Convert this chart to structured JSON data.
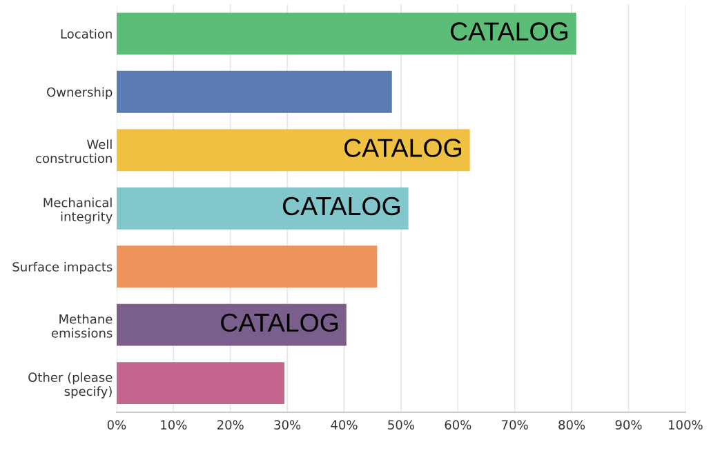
{
  "chart_data": {
    "type": "bar",
    "orientation": "horizontal",
    "categories": [
      "Location",
      "Ownership",
      "Well\nconstruction",
      "Mechanical\nintegrity",
      "Surface impacts",
      "Methane\nemissions",
      "Other (please\nspecify)"
    ],
    "values": [
      80.8,
      48.4,
      62.1,
      51.3,
      45.8,
      40.4,
      29.5
    ],
    "colors": [
      "#5bbd78",
      "#5a7bb1",
      "#efc042",
      "#82c7cb",
      "#ef935d",
      "#7a5f8c",
      "#c4668e"
    ],
    "xlim": [
      0,
      100
    ],
    "xticks": [
      {
        "value": 0,
        "label": "0%"
      },
      {
        "value": 10,
        "label": "10%"
      },
      {
        "value": 20,
        "label": "20%"
      },
      {
        "value": 30,
        "label": "30%"
      },
      {
        "value": 40,
        "label": "40%"
      },
      {
        "value": 50,
        "label": "50%"
      },
      {
        "value": 60,
        "label": "60%"
      },
      {
        "value": 70,
        "label": "70%"
      },
      {
        "value": 80,
        "label": "80%"
      },
      {
        "value": 90,
        "label": "90%"
      },
      {
        "value": 100,
        "label": "100%"
      }
    ],
    "grid": "x",
    "annotations": [
      {
        "text": "CATALOG",
        "x": 80.8,
        "y": "Location"
      },
      {
        "text": "CATALOG",
        "x": 62.1,
        "y": "Well\nconstruction"
      },
      {
        "text": "CATALOG",
        "x": 51.3,
        "y": "Mechanical\nintegrity"
      },
      {
        "text": "CATALOG",
        "x": 40.4,
        "y": "Methane\nemissions"
      }
    ]
  }
}
